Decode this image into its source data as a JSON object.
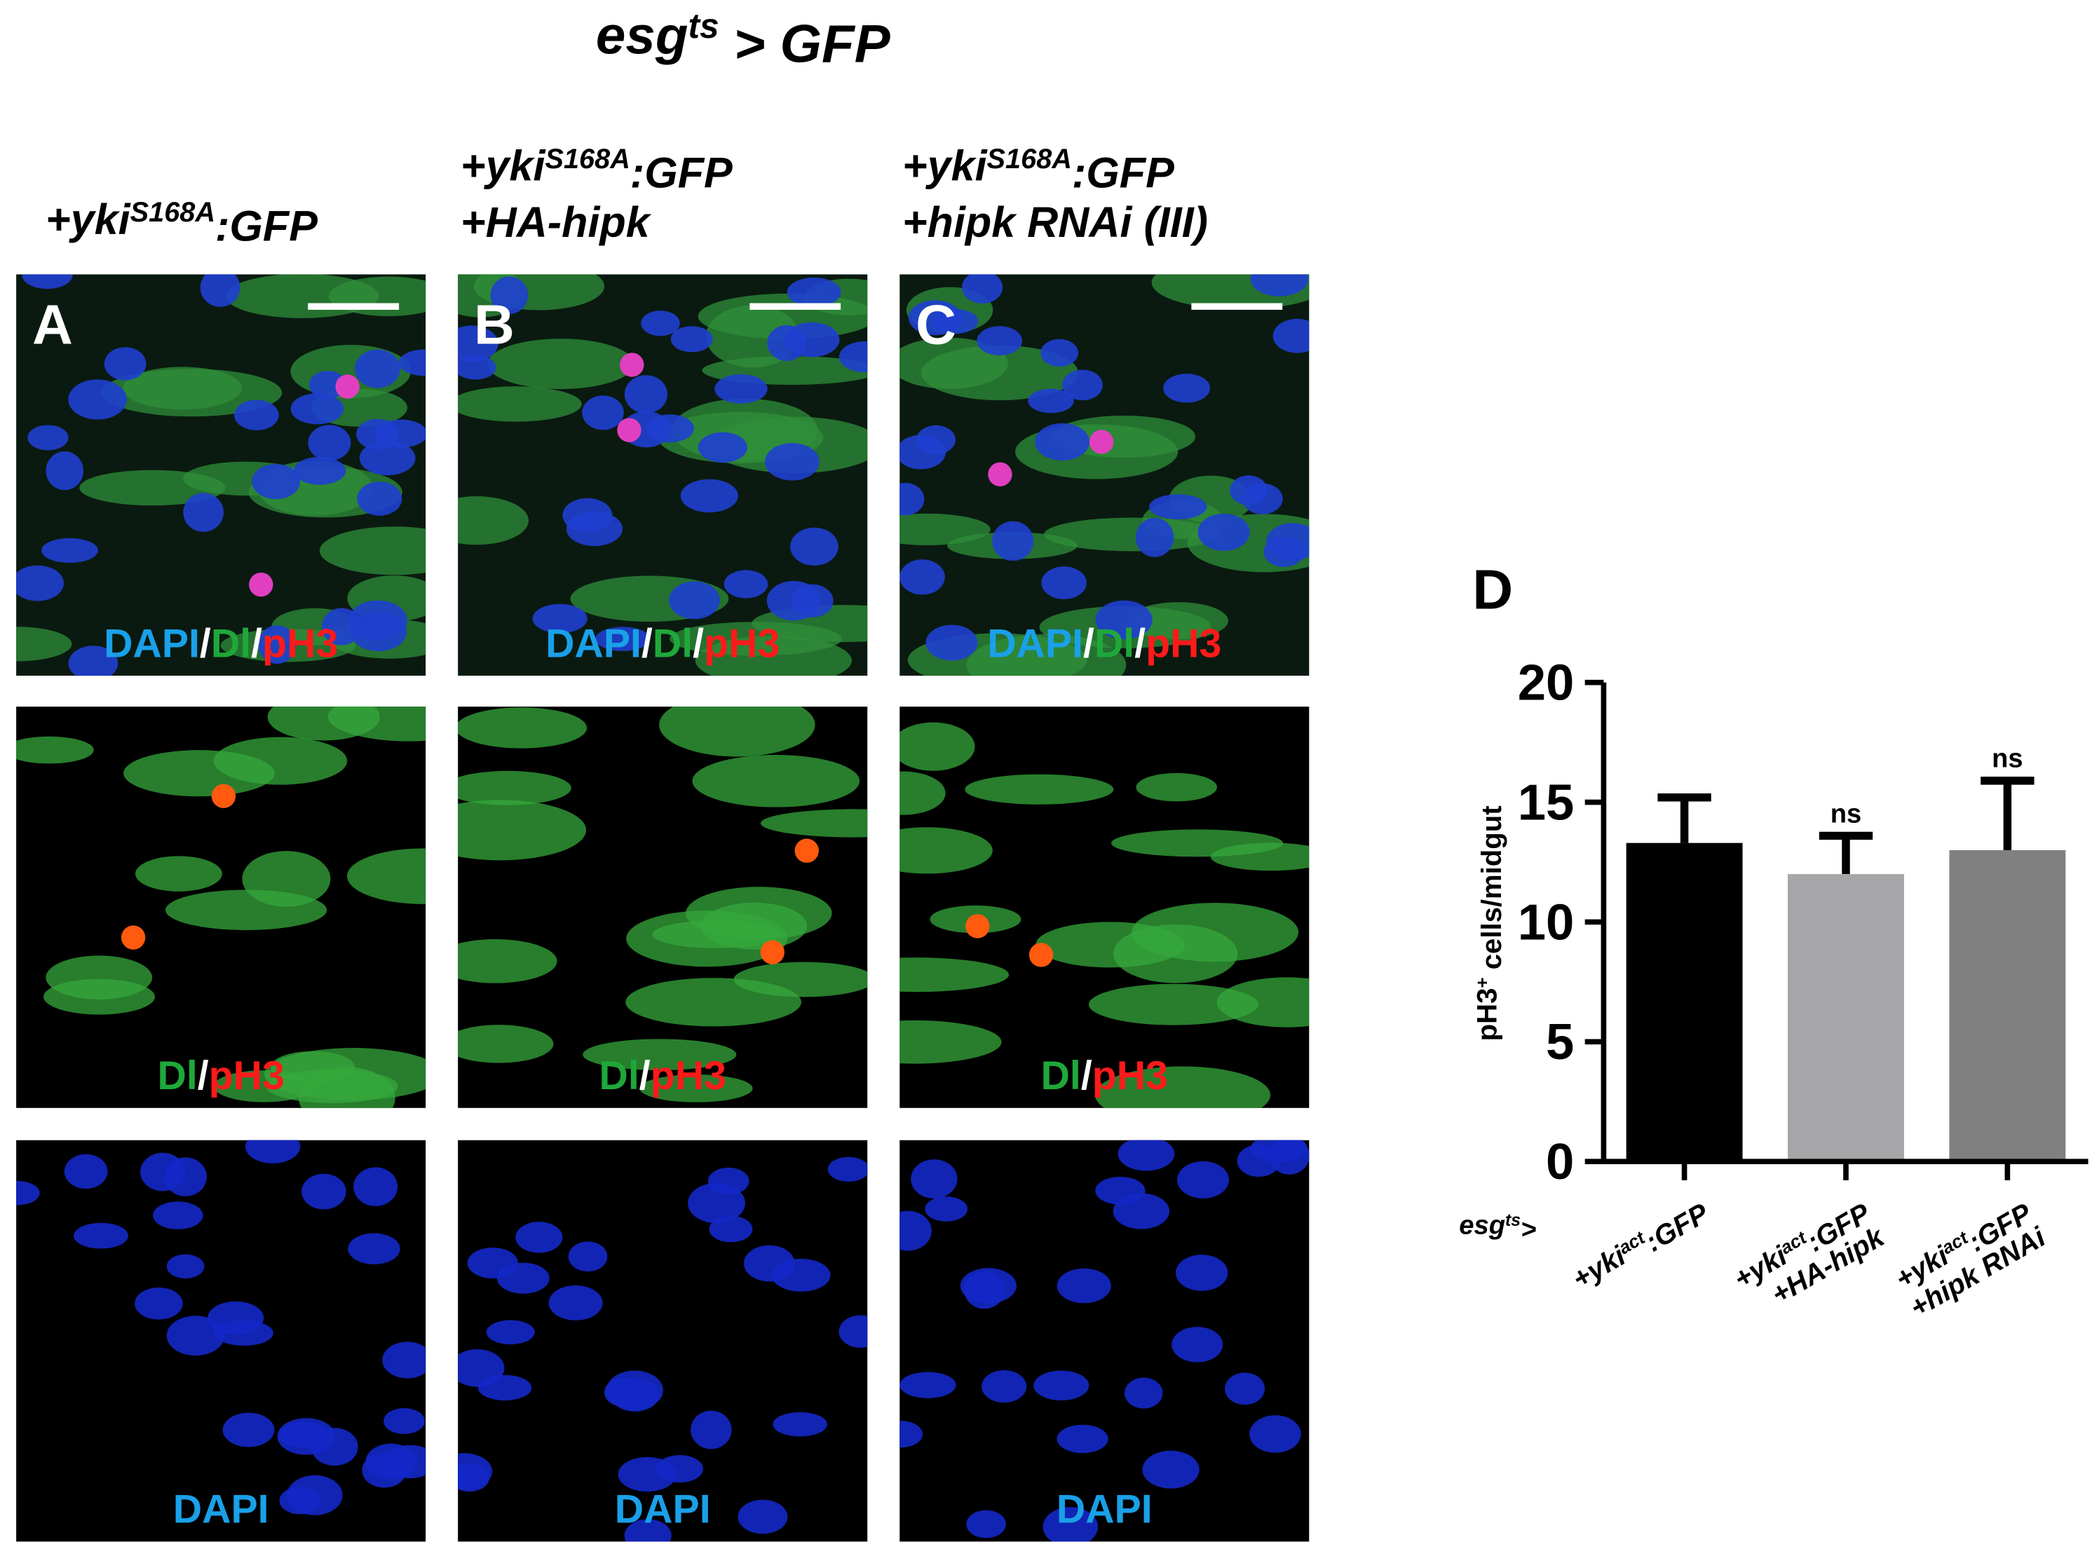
{
  "title": [
    {
      "text": "esg"
    },
    {
      "sup": "ts"
    },
    {
      "text": " > GFP"
    }
  ],
  "columns": [
    {
      "label": "A",
      "header": [
        [
          {
            "text": "+yki"
          },
          {
            "sup": "S168A"
          },
          {
            "text": ":GFP"
          }
        ]
      ],
      "rows": [
        [
          {
            "text": "DAPI",
            "color": "#1aa0e8"
          },
          {
            "text": "/",
            "color": "#ffffff"
          },
          {
            "text": "Dl",
            "color": "#1fa83a"
          },
          {
            "text": "/",
            "color": "#ffffff"
          },
          {
            "text": "pH3",
            "color": "#ff1a1a"
          }
        ],
        [
          {
            "text": "Dl",
            "color": "#1fa83a"
          },
          {
            "text": "/",
            "color": "#ffffff"
          },
          {
            "text": "pH3",
            "color": "#ff1a1a"
          }
        ],
        [
          {
            "text": "DAPI",
            "color": "#1aa0e8"
          }
        ]
      ]
    },
    {
      "label": "B",
      "header": [
        [
          {
            "text": "+yki"
          },
          {
            "sup": "S168A"
          },
          {
            "text": ":GFP"
          }
        ],
        [
          {
            "text": "+HA-hipk"
          }
        ]
      ],
      "rows": [
        [
          {
            "text": "DAPI",
            "color": "#1aa0e8"
          },
          {
            "text": "/",
            "color": "#ffffff"
          },
          {
            "text": "Dl",
            "color": "#1fa83a"
          },
          {
            "text": "/",
            "color": "#ffffff"
          },
          {
            "text": "pH3",
            "color": "#ff1a1a"
          }
        ],
        [
          {
            "text": "Dl",
            "color": "#1fa83a"
          },
          {
            "text": "/",
            "color": "#ffffff"
          },
          {
            "text": "pH3",
            "color": "#ff1a1a"
          }
        ],
        [
          {
            "text": "DAPI",
            "color": "#1aa0e8"
          }
        ]
      ]
    },
    {
      "label": "C",
      "header": [
        [
          {
            "text": "+yki"
          },
          {
            "sup": "S168A"
          },
          {
            "text": ":GFP"
          }
        ],
        [
          {
            "text": "+hipk RNAi (III)"
          }
        ]
      ],
      "rows": [
        [
          {
            "text": "DAPI",
            "color": "#1aa0e8"
          },
          {
            "text": "/",
            "color": "#ffffff"
          },
          {
            "text": "Dl",
            "color": "#1fa83a"
          },
          {
            "text": "/",
            "color": "#ffffff"
          },
          {
            "text": "pH3",
            "color": "#ff1a1a"
          }
        ],
        [
          {
            "text": "Dl",
            "color": "#1fa83a"
          },
          {
            "text": "/",
            "color": "#ffffff"
          },
          {
            "text": "pH3",
            "color": "#ff1a1a"
          }
        ],
        [
          {
            "text": "DAPI",
            "color": "#1aa0e8"
          }
        ]
      ]
    }
  ],
  "chart_data": {
    "type": "bar",
    "panel_label": "D",
    "ylabel": [
      {
        "text": "pH3"
      },
      {
        "sup": "+"
      },
      {
        "text": " cells/midgut"
      }
    ],
    "x_prefix": [
      {
        "text": "esg"
      },
      {
        "sup": "ts"
      },
      {
        "text": ">"
      }
    ],
    "categories": [
      [
        [
          {
            "text": "+yki"
          },
          {
            "sup": "act"
          },
          {
            "text": ":GFP"
          }
        ]
      ],
      [
        [
          {
            "text": "+yki"
          },
          {
            "sup": "act"
          },
          {
            "text": ":GFP"
          }
        ],
        [
          {
            "text": "+HA-hipk"
          }
        ]
      ],
      [
        [
          {
            "text": "+yki"
          },
          {
            "sup": "act"
          },
          {
            "text": ":GFP"
          }
        ],
        [
          {
            "text": "+hipk RNAi"
          }
        ]
      ]
    ],
    "values": [
      13.3,
      12,
      13
    ],
    "errors": [
      1.9,
      1.6,
      2.9
    ],
    "colors": [
      "#000000",
      "#a6a6a8",
      "#808080"
    ],
    "annotations": [
      null,
      "ns",
      "ns"
    ],
    "ylim": [
      0,
      20
    ],
    "yticks": [
      0,
      5,
      10,
      15,
      20
    ]
  }
}
